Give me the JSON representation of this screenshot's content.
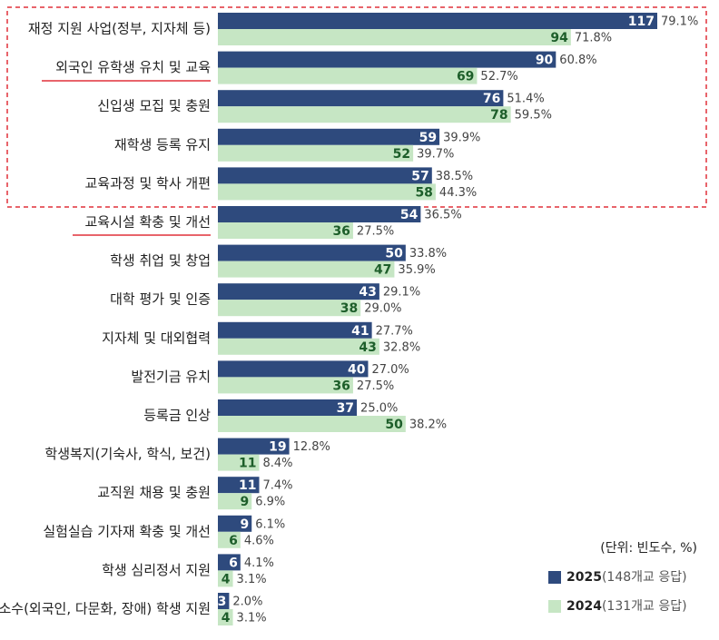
{
  "chart_data": {
    "type": "bar",
    "orientation": "horizontal",
    "categories": [
      "재정 지원 사업(정부, 지자체 등)",
      "외국인 유학생 유치 및 교육",
      "신입생 모집 및 충원",
      "재학생 등록 유지",
      "교육과정 및 학사 개편",
      "교육시설 확충 및 개선",
      "학생 취업 및 창업",
      "대학 평가 및 인증",
      "지자체 및 대외협력",
      "발전기금 유치",
      "등록금 인상",
      "학생복지(기숙사, 학식, 보건)",
      "교직원 채용 및 충원",
      "실험실습 기자재 확충 및 개선",
      "학생 심리정서 지원",
      "소수(외국인, 다문화, 장애) 학생 지원"
    ],
    "unit_note": "(단위: 빈도수, %)",
    "series": [
      {
        "name": "2025",
        "respondents": "(148개교 응답)",
        "color": "#2e4a7d",
        "label_color": "#ffffff",
        "values": [
          117,
          90,
          76,
          59,
          57,
          54,
          50,
          43,
          41,
          40,
          37,
          19,
          11,
          9,
          6,
          3
        ],
        "share_labels": [
          "79.1%",
          "60.8%",
          "51.4%",
          "39.9%",
          "38.5%",
          "36.5%",
          "33.8%",
          "29.1%",
          "27.7%",
          "27.0%",
          "25.0%",
          "12.8%",
          "7.4%",
          "6.1%",
          "4.1%",
          "2.0%"
        ]
      },
      {
        "name": "2024",
        "respondents": "(131개교 응답)",
        "color": "#c6e6c4",
        "label_color": "#1d5e2a",
        "values": [
          94,
          69,
          78,
          52,
          58,
          36,
          47,
          38,
          43,
          36,
          50,
          11,
          9,
          6,
          4,
          4
        ],
        "share_labels": [
          "71.8%",
          "52.7%",
          "59.5%",
          "39.7%",
          "44.3%",
          "27.5%",
          "35.9%",
          "29.0%",
          "32.8%",
          "27.5%",
          "38.2%",
          "8.4%",
          "6.9%",
          "4.6%",
          "3.1%",
          "3.1%"
        ]
      }
    ]
  }
}
